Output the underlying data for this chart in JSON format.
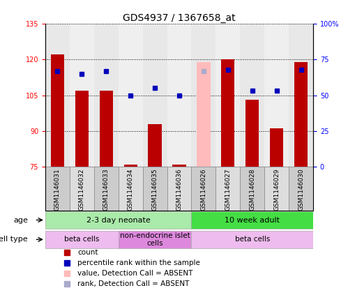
{
  "title": "GDS4937 / 1367658_at",
  "samples": [
    "GSM1146031",
    "GSM1146032",
    "GSM1146033",
    "GSM1146034",
    "GSM1146035",
    "GSM1146036",
    "GSM1146026",
    "GSM1146027",
    "GSM1146028",
    "GSM1146029",
    "GSM1146030"
  ],
  "counts": [
    122,
    107,
    107,
    76,
    93,
    76,
    119,
    120,
    103,
    91,
    119
  ],
  "percentile_ranks": [
    67,
    65,
    67,
    50,
    55,
    50,
    67,
    68,
    53,
    53,
    68
  ],
  "absent_flags": [
    false,
    false,
    false,
    false,
    false,
    false,
    true,
    false,
    false,
    false,
    false
  ],
  "ylim_left": [
    75,
    135
  ],
  "ylim_right": [
    0,
    100
  ],
  "yticks_left": [
    75,
    90,
    105,
    120,
    135
  ],
  "yticks_right": [
    0,
    25,
    50,
    75,
    100
  ],
  "ytick_labels_left": [
    "75",
    "90",
    "105",
    "120",
    "135"
  ],
  "ytick_labels_right": [
    "0",
    "25",
    "50",
    "75",
    "100%"
  ],
  "bar_color": "#bb0000",
  "bar_color_absent": "#ffbbbb",
  "dot_color": "#0000bb",
  "dot_color_absent": "#aaaacc",
  "grid_color": "#000000",
  "col_bg_even": "#cccccc",
  "col_bg_odd": "#dddddd",
  "age_groups": [
    {
      "label": "2-3 day neonate",
      "start": 0,
      "end": 6,
      "color": "#aaeaaa"
    },
    {
      "label": "10 week adult",
      "start": 6,
      "end": 11,
      "color": "#44dd44"
    }
  ],
  "cell_type_groups": [
    {
      "label": "beta cells",
      "start": 0,
      "end": 3,
      "color": "#eebcee"
    },
    {
      "label": "non-endocrine islet\ncells",
      "start": 3,
      "end": 6,
      "color": "#dd88dd"
    },
    {
      "label": "beta cells",
      "start": 6,
      "end": 11,
      "color": "#eebcee"
    }
  ],
  "legend_items": [
    {
      "color": "#bb0000",
      "label": "count"
    },
    {
      "color": "#0000bb",
      "label": "percentile rank within the sample"
    },
    {
      "color": "#ffbbbb",
      "label": "value, Detection Call = ABSENT"
    },
    {
      "color": "#aaaacc",
      "label": "rank, Detection Call = ABSENT"
    }
  ],
  "title_fontsize": 10,
  "tick_fontsize": 7,
  "legend_fontsize": 8,
  "row_label_fontsize": 8
}
